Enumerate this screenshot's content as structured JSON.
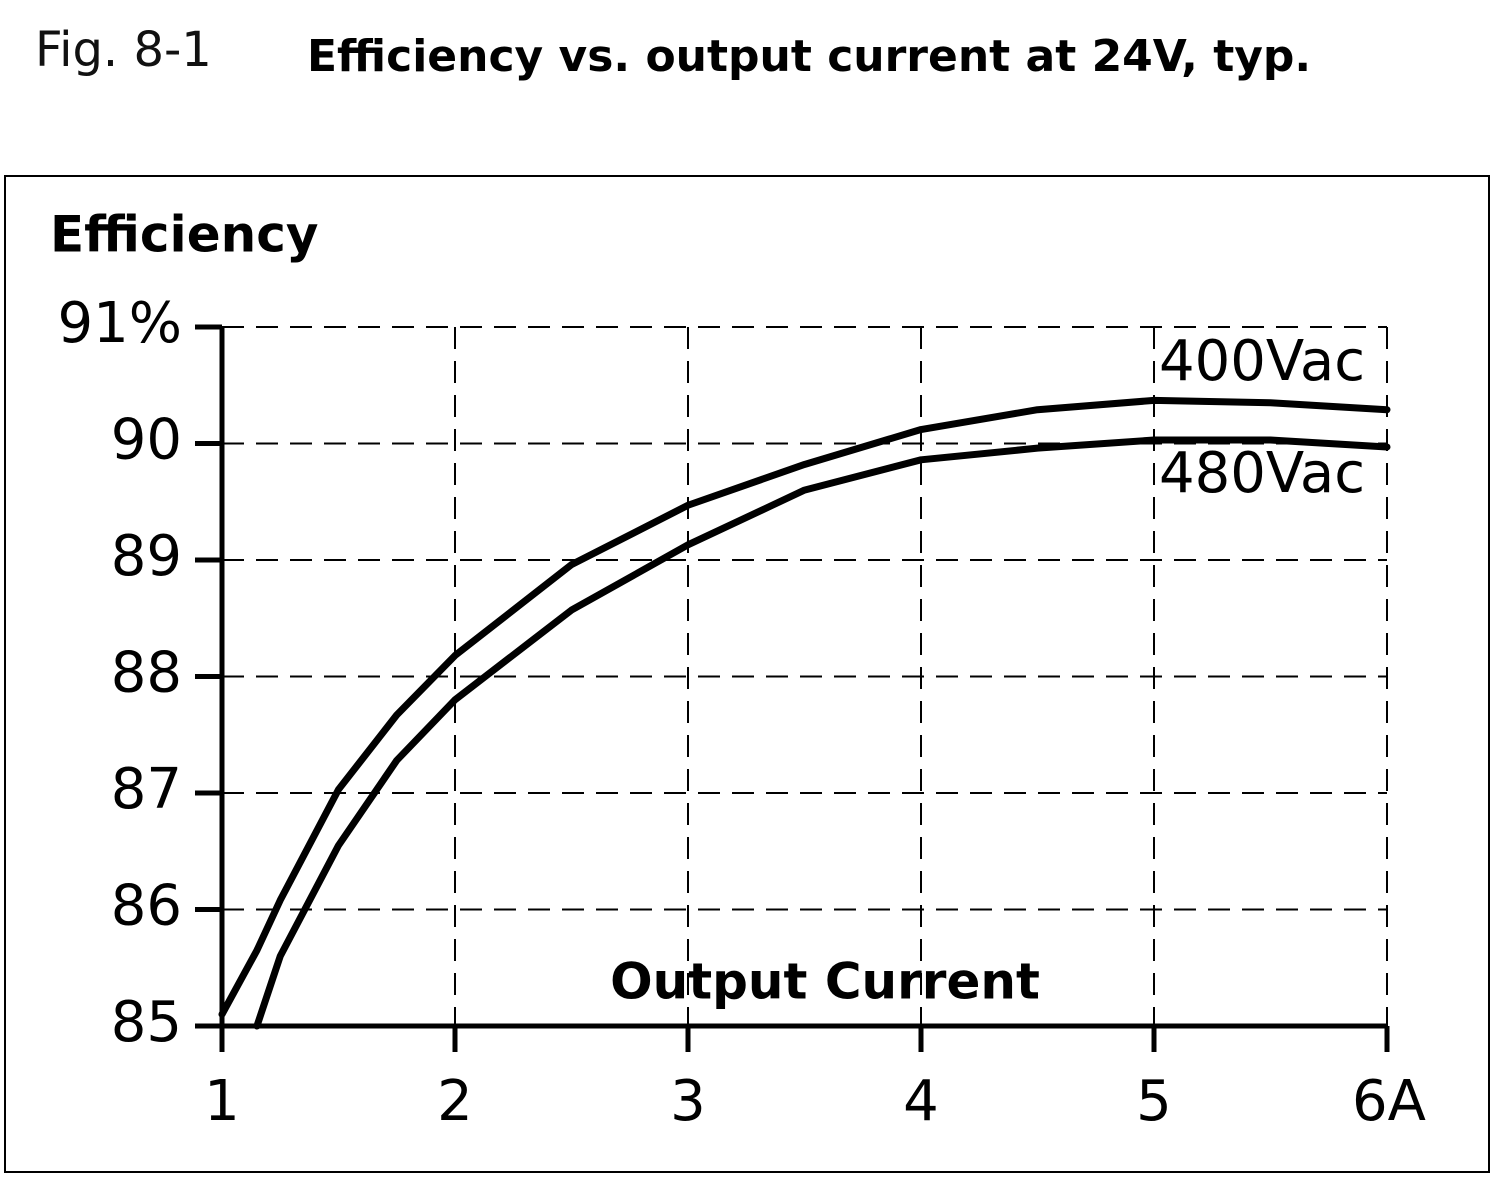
{
  "chart_data": {
    "type": "line",
    "figure_label": "Fig. 8-1",
    "title": "Efficiency vs. output current at 24V, typ.",
    "y_label": "Efficiency",
    "x_label": "Output Current",
    "x": [
      1,
      1.15,
      1.25,
      1.5,
      1.75,
      2,
      2.5,
      3,
      3.5,
      4,
      4.5,
      5,
      5.5,
      6
    ],
    "series": [
      {
        "name": "400Vac",
        "color": "#000000",
        "values": [
          85.1,
          85.65,
          86.08,
          87.03,
          87.67,
          88.18,
          88.96,
          89.47,
          89.82,
          90.12,
          90.29,
          90.37,
          90.35,
          90.29
        ]
      },
      {
        "name": "480Vac",
        "color": "#000000",
        "values": [
          null,
          85.0,
          85.6,
          86.55,
          87.28,
          87.8,
          88.57,
          89.13,
          89.6,
          89.86,
          89.96,
          90.03,
          90.03,
          89.97
        ]
      }
    ],
    "xlim": [
      1,
      6
    ],
    "ylim": [
      85,
      91
    ],
    "xticks": [
      1,
      2,
      3,
      4,
      5,
      {
        "value": 6,
        "label": "6A"
      }
    ],
    "yticks": [
      85,
      86,
      87,
      88,
      89,
      90,
      {
        "value": 91,
        "label": "91%"
      }
    ],
    "grid": true
  }
}
